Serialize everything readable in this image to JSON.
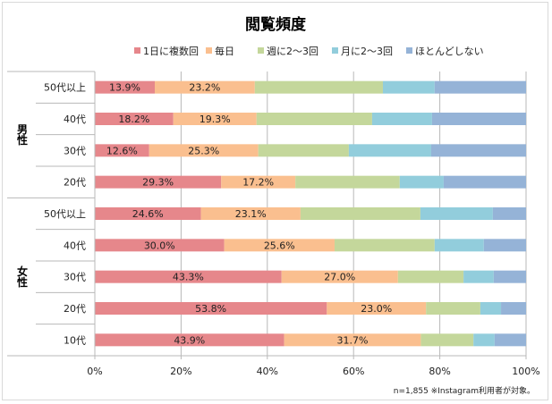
{
  "chart_data": {
    "type": "bar",
    "orientation": "horizontal",
    "stacked": "percent",
    "title": "閲覧頻度",
    "xlim": [
      0,
      100
    ],
    "x_ticks": [
      "0%",
      "20%",
      "40%",
      "60%",
      "80%",
      "100%"
    ],
    "grid": true,
    "legend_position": "top",
    "note": "n=1,855 ※Instagram利用者が対象。",
    "groups": [
      {
        "name": "男性",
        "categories": [
          "50代以上",
          "40代",
          "30代",
          "20代"
        ]
      },
      {
        "name": "女性",
        "categories": [
          "50代以上",
          "40代",
          "30代",
          "20代",
          "10代"
        ]
      }
    ],
    "categories": [
      "男性 50代以上",
      "男性 40代",
      "男性 30代",
      "男性 20代",
      "女性 50代以上",
      "女性 40代",
      "女性 30代",
      "女性 20代",
      "女性 10代"
    ],
    "series": [
      {
        "name": "1日に複数回",
        "color": "#E6878B",
        "values": [
          13.9,
          18.2,
          12.6,
          29.3,
          24.6,
          30.0,
          43.3,
          53.8,
          43.9
        ],
        "labels": [
          "13.9%",
          "18.2%",
          "12.6%",
          "29.3%",
          "24.6%",
          "30.0%",
          "43.3%",
          "53.8%",
          "43.9%"
        ]
      },
      {
        "name": "毎日",
        "color": "#FABF8F",
        "values": [
          23.2,
          19.3,
          25.3,
          17.2,
          23.1,
          25.6,
          27.0,
          23.0,
          31.7
        ],
        "labels": [
          "23.2%",
          "19.3%",
          "25.3%",
          "17.2%",
          "23.1%",
          "25.6%",
          "27.0%",
          "23.0%",
          "31.7%"
        ]
      },
      {
        "name": "週に2～3回",
        "color": "#C4D79B",
        "values": [
          29.7,
          26.8,
          21.0,
          24.2,
          27.8,
          23.2,
          15.2,
          12.6,
          12.2
        ]
      },
      {
        "name": "月に2～3回",
        "color": "#92CDDC",
        "values": [
          12.0,
          13.9,
          19.1,
          10.2,
          16.8,
          11.4,
          7.0,
          4.8,
          4.9
        ]
      },
      {
        "name": "ほとんどしない",
        "color": "#95B3D7",
        "values": [
          21.2,
          21.8,
          22.0,
          19.1,
          7.7,
          9.8,
          7.5,
          5.8,
          7.3
        ]
      }
    ]
  }
}
